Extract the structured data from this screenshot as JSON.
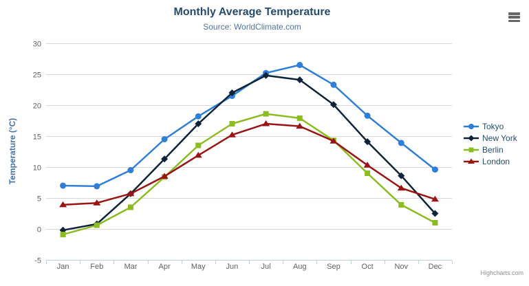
{
  "chart_data": {
    "type": "line",
    "title": "Monthly Average Temperature",
    "subtitle": "Source: WorldClimate.com",
    "credits": "Highcharts.com",
    "xlabel": "",
    "ylabel": "Temperature (°C)",
    "categories": [
      "Jan",
      "Feb",
      "Mar",
      "Apr",
      "May",
      "Jun",
      "Jul",
      "Aug",
      "Sep",
      "Oct",
      "Nov",
      "Dec"
    ],
    "ylim": [
      -5,
      30
    ],
    "ytick_step": 5,
    "grid": true,
    "legend_position": "right",
    "colors": {
      "grid": "#d8d8d8",
      "axis_line": "#c0d0e0",
      "tick_label": "#606060",
      "title": "#274b6d",
      "subtitle": "#4d759e",
      "axis_title": "#4572a7",
      "credits": "#909090",
      "menu_icon": "#666666"
    },
    "series": [
      {
        "name": "Tokyo",
        "color": "#2f7ed8",
        "marker": "circle",
        "values": [
          7.0,
          6.9,
          9.5,
          14.5,
          18.2,
          21.5,
          25.2,
          26.5,
          23.3,
          18.3,
          13.9,
          9.6
        ]
      },
      {
        "name": "New York",
        "color": "#0d233a",
        "marker": "diamond",
        "values": [
          -0.2,
          0.8,
          5.7,
          11.3,
          17.0,
          22.0,
          24.8,
          24.1,
          20.1,
          14.1,
          8.6,
          2.5
        ]
      },
      {
        "name": "Berlin",
        "color": "#8bbc21",
        "marker": "square",
        "values": [
          -0.9,
          0.6,
          3.5,
          8.4,
          13.5,
          17.0,
          18.6,
          17.9,
          14.3,
          9.0,
          3.9,
          1.0
        ]
      },
      {
        "name": "London",
        "color": "#9a1414",
        "marker": "triangle",
        "values": [
          3.9,
          4.2,
          5.7,
          8.5,
          11.9,
          15.2,
          17.0,
          16.6,
          14.2,
          10.3,
          6.6,
          4.8
        ]
      }
    ]
  }
}
